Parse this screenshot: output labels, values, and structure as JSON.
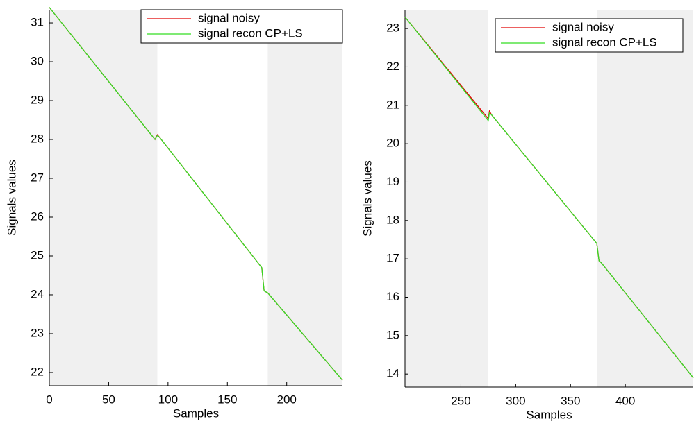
{
  "chart_data": [
    {
      "type": "line",
      "xlabel": "Samples",
      "ylabel": "Signals values",
      "xlim": [
        0,
        247
      ],
      "ylim": [
        21.66,
        31.34
      ],
      "xticks": [
        0,
        50,
        100,
        150,
        200
      ],
      "yticks": [
        22,
        23,
        24,
        25,
        26,
        27,
        28,
        29,
        30,
        31
      ],
      "shaded_regions": [
        [
          0,
          91
        ],
        [
          184,
          247
        ]
      ],
      "shade_color": "#f0f0f0",
      "legend": "upper right",
      "x": [
        0,
        89,
        91,
        93,
        179,
        181,
        184,
        247
      ],
      "series": [
        {
          "name": "signal noisy",
          "color": "#e00000",
          "values": [
            31.4,
            28.0,
            28.12,
            28.05,
            24.7,
            24.1,
            24.05,
            21.8
          ]
        },
        {
          "name": "signal recon CP+LS",
          "color": "#33dd22",
          "values": [
            31.4,
            28.0,
            28.1,
            28.05,
            24.7,
            24.1,
            24.05,
            21.8
          ]
        }
      ]
    },
    {
      "type": "line",
      "xlabel": "Samples",
      "ylabel": "Signals values",
      "xlim": [
        199,
        462
      ],
      "ylim": [
        13.66,
        23.49
      ],
      "xticks": [
        250,
        300,
        350,
        400
      ],
      "yticks": [
        14,
        15,
        16,
        17,
        18,
        19,
        20,
        21,
        22,
        23
      ],
      "shaded_regions": [
        [
          199,
          275
        ],
        [
          374,
          462
        ]
      ],
      "shade_color": "#f0f0f0",
      "legend": "upper right",
      "x": [
        199,
        275,
        276,
        278,
        374,
        376,
        378,
        462
      ],
      "series": [
        {
          "name": "signal noisy",
          "color": "#e00000",
          "values": [
            23.3,
            20.65,
            20.85,
            20.75,
            17.4,
            16.95,
            16.9,
            13.9
          ]
        },
        {
          "name": "signal recon CP+LS",
          "color": "#33dd22",
          "values": [
            23.3,
            20.6,
            20.8,
            20.75,
            17.4,
            16.95,
            16.9,
            13.9
          ]
        }
      ]
    }
  ]
}
